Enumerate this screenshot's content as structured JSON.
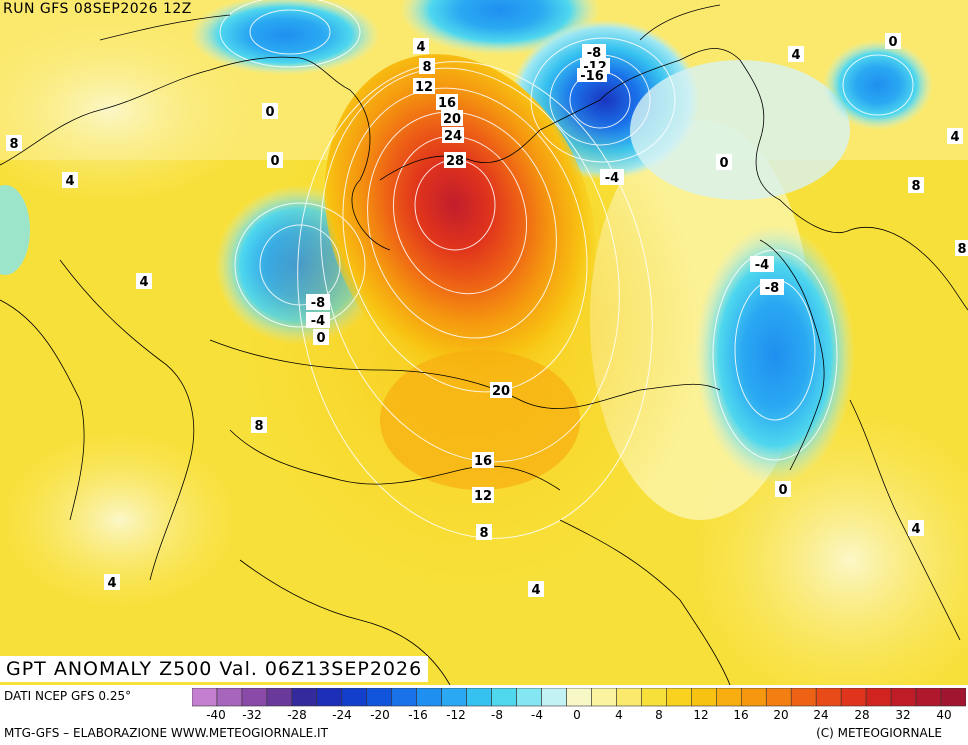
{
  "header": {
    "run_label": "RUN GFS 08SEP2026 12Z",
    "map_title": "GPT ANOMALY Z500 Val. 06Z13SEP2026"
  },
  "footer": {
    "source": "DATI NCEP GFS 0.25°",
    "left": "MTG-GFS – ELABORAZIONE WWW.METEOGIORNALE.IT",
    "right": "(C) METEOGIORNALE"
  },
  "colorbar": {
    "tick_labels": [
      "-40",
      "-32",
      "-28",
      "-24",
      "-20",
      "-16",
      "-12",
      "-8",
      "-4",
      "0",
      "4",
      "8",
      "12",
      "16",
      "20",
      "24",
      "28",
      "32",
      "40"
    ],
    "colors": [
      "#c47fd0",
      "#a865be",
      "#8a4aa8",
      "#6a3a9a",
      "#332a9e",
      "#1d2fb8",
      "#1240cc",
      "#1255dd",
      "#1a72ea",
      "#1f8ff0",
      "#2aa8f2",
      "#36c2f0",
      "#4fd7ee",
      "#84e6f0",
      "#c3f2f4",
      "#f8f8c6",
      "#fbf3a0",
      "#fbe96e",
      "#f8e03a",
      "#f8d21e",
      "#f8c212",
      "#f8ae10",
      "#f5980f",
      "#f37e12",
      "#ee6215",
      "#e84a18",
      "#e0341c",
      "#d2241f",
      "#c01c28",
      "#b0182e",
      "#a01530"
    ]
  },
  "contour_labels": [
    {
      "text": "4"
    },
    {
      "text": "8"
    },
    {
      "text": "12"
    },
    {
      "text": "16"
    },
    {
      "text": "20"
    },
    {
      "text": "24"
    },
    {
      "text": "28"
    },
    {
      "text": "-8"
    },
    {
      "text": "-12"
    },
    {
      "text": "-16"
    },
    {
      "text": "-4"
    },
    {
      "text": "0"
    },
    {
      "text": "4"
    },
    {
      "text": "0"
    },
    {
      "text": "4"
    },
    {
      "text": "8"
    },
    {
      "text": "8"
    },
    {
      "text": "0"
    },
    {
      "text": "0"
    },
    {
      "text": "8"
    },
    {
      "text": "4"
    },
    {
      "text": "4"
    },
    {
      "text": "-8"
    },
    {
      "text": "-4"
    },
    {
      "text": "0"
    },
    {
      "text": "-4"
    },
    {
      "text": "-8"
    },
    {
      "text": "20"
    },
    {
      "text": "8"
    },
    {
      "text": "16"
    },
    {
      "text": "12"
    },
    {
      "text": "8"
    },
    {
      "text": "0"
    },
    {
      "text": "4"
    },
    {
      "text": "4"
    },
    {
      "text": "4"
    }
  ]
}
